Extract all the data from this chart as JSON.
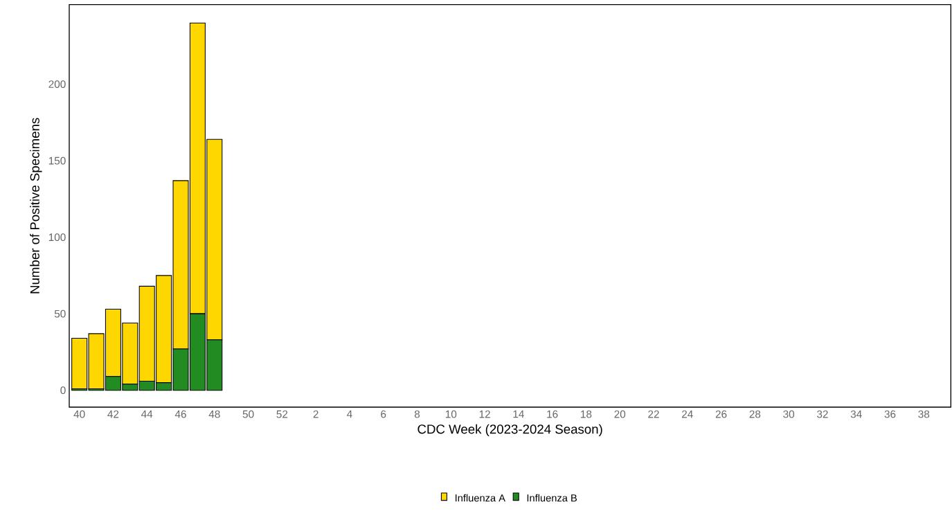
{
  "chart_data": {
    "type": "bar",
    "stacked": true,
    "xlabel": "CDC Week (2023-2024 Season)",
    "ylabel": "Number of Positive Specimens",
    "categories": [
      "40",
      null,
      "42",
      null,
      "44",
      null,
      "46",
      null,
      "48",
      null,
      "50",
      null,
      "52",
      null,
      "2",
      null,
      "4",
      null,
      "6",
      null,
      "8",
      null,
      "10",
      null,
      "12",
      null,
      "14",
      null,
      "16",
      null,
      "18",
      null,
      "20",
      null,
      "22",
      null,
      "24",
      null,
      "26",
      null,
      "28",
      null,
      "30",
      null,
      "32",
      null,
      "34",
      null,
      "36",
      null,
      "38",
      null
    ],
    "series": [
      {
        "name": "Influenza B",
        "color": "#228b22",
        "values": [
          1,
          1,
          9,
          4,
          6,
          5,
          27,
          50,
          33,
          null,
          null,
          null,
          null,
          null,
          null,
          null,
          null,
          null,
          null,
          null,
          null,
          null,
          null,
          null,
          null,
          null,
          null,
          null,
          null,
          null,
          null,
          null,
          null,
          null,
          null,
          null,
          null,
          null,
          null,
          null,
          null,
          null,
          null,
          null,
          null,
          null,
          null,
          null,
          null,
          null,
          null,
          null
        ]
      },
      {
        "name": "Influenza A",
        "color": "#ffd700",
        "values": [
          33,
          36,
          44,
          40,
          62,
          70,
          110,
          190,
          131,
          null,
          null,
          null,
          null,
          null,
          null,
          null,
          null,
          null,
          null,
          null,
          null,
          null,
          null,
          null,
          null,
          null,
          null,
          null,
          null,
          null,
          null,
          null,
          null,
          null,
          null,
          null,
          null,
          null,
          null,
          null,
          null,
          null,
          null,
          null,
          null,
          null,
          null,
          null,
          null,
          null,
          null,
          null
        ]
      }
    ],
    "ylim": [
      -11,
      252
    ],
    "yticks": [
      0,
      50,
      100,
      150,
      200
    ],
    "legend": "bottom"
  }
}
